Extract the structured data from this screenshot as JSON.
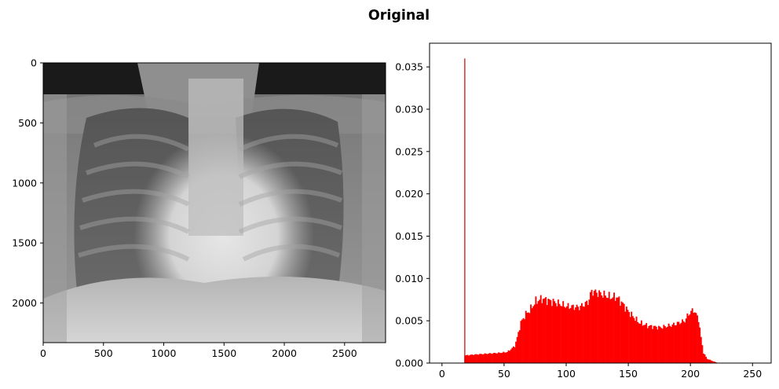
{
  "title": "Original",
  "chart_data": [
    {
      "type": "image",
      "description_role": "grayscale image display",
      "xlim": [
        0,
        2840
      ],
      "ylim": [
        2330,
        0
      ],
      "xticks": [
        0,
        500,
        1000,
        1500,
        2000,
        2500
      ],
      "yticks": [
        0,
        500,
        1000,
        1500,
        2000
      ],
      "colormap": "gray"
    },
    {
      "type": "bar",
      "xlim": [
        -10,
        265
      ],
      "ylim": [
        0,
        0.0378
      ],
      "xticks": [
        0,
        50,
        100,
        150,
        200,
        250
      ],
      "yticks": [
        0.0,
        0.005,
        0.01,
        0.015,
        0.02,
        0.025,
        0.03,
        0.035
      ],
      "ytick_labels": [
        "0.000",
        "0.005",
        "0.010",
        "0.015",
        "0.020",
        "0.025",
        "0.030",
        "0.035"
      ],
      "color": "#ff0000",
      "spike": {
        "x": 18,
        "y": 0.036
      },
      "profile": [
        [
          18,
          0.0009
        ],
        [
          25,
          0.001
        ],
        [
          35,
          0.0011
        ],
        [
          45,
          0.0012
        ],
        [
          52,
          0.0013
        ],
        [
          58,
          0.002
        ],
        [
          60,
          0.003
        ],
        [
          63,
          0.0048
        ],
        [
          67,
          0.0058
        ],
        [
          70,
          0.0062
        ],
        [
          75,
          0.0073
        ],
        [
          80,
          0.0076
        ],
        [
          90,
          0.0072
        ],
        [
          100,
          0.0067
        ],
        [
          110,
          0.0066
        ],
        [
          117,
          0.0072
        ],
        [
          120,
          0.0085
        ],
        [
          125,
          0.0083
        ],
        [
          135,
          0.0078
        ],
        [
          140,
          0.0078
        ],
        [
          145,
          0.007
        ],
        [
          150,
          0.006
        ],
        [
          158,
          0.0048
        ],
        [
          165,
          0.0044
        ],
        [
          175,
          0.0042
        ],
        [
          185,
          0.0045
        ],
        [
          195,
          0.005
        ],
        [
          198,
          0.0058
        ],
        [
          202,
          0.0063
        ],
        [
          206,
          0.0052
        ],
        [
          208,
          0.003
        ],
        [
          210,
          0.0012
        ],
        [
          213,
          0.0005
        ],
        [
          218,
          0.0002
        ],
        [
          222,
          0.0
        ]
      ]
    }
  ]
}
